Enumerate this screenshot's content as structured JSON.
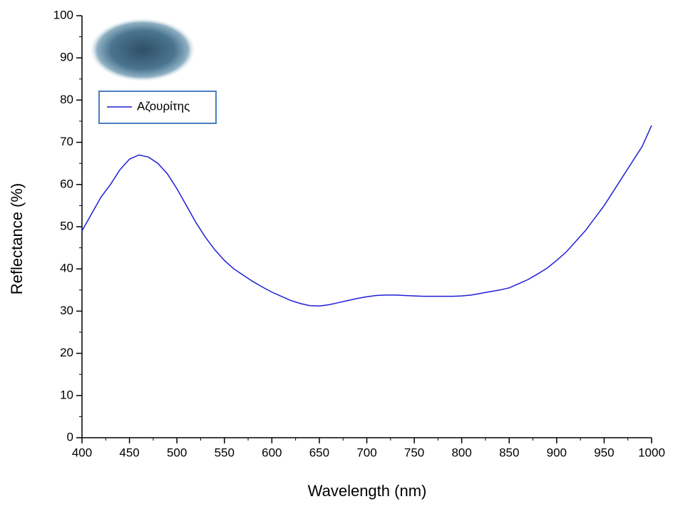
{
  "chart_data": {
    "type": "line",
    "x_label": "Wavelength (nm)",
    "y_label": "Reflectance (%)",
    "x": [
      400,
      410,
      420,
      430,
      440,
      450,
      460,
      470,
      480,
      490,
      500,
      510,
      520,
      530,
      540,
      550,
      560,
      570,
      580,
      590,
      600,
      610,
      620,
      630,
      640,
      650,
      660,
      670,
      680,
      690,
      700,
      710,
      720,
      730,
      740,
      750,
      760,
      770,
      780,
      790,
      800,
      810,
      820,
      830,
      840,
      850,
      860,
      870,
      880,
      890,
      900,
      910,
      920,
      930,
      940,
      950,
      960,
      970,
      980,
      990,
      1000
    ],
    "series": [
      {
        "name": "Αζουρίτης",
        "color": "#1f1fd6",
        "values": [
          49,
          53,
          57,
          60,
          63.5,
          66,
          67,
          66.5,
          65,
          62.5,
          59,
          55,
          51,
          47.5,
          44.5,
          42,
          40,
          38.5,
          37,
          35.7,
          34.5,
          33.5,
          32.5,
          31.8,
          31.3,
          31.2,
          31.5,
          32,
          32.5,
          33,
          33.4,
          33.7,
          33.8,
          33.8,
          33.7,
          33.6,
          33.5,
          33.5,
          33.5,
          33.5,
          33.6,
          33.8,
          34.2,
          34.6,
          35,
          35.5,
          36.5,
          37.5,
          38.8,
          40.2,
          42,
          44,
          46.5,
          49,
          52,
          55,
          58.5,
          62,
          65.5,
          69,
          74
        ]
      }
    ],
    "xlim": [
      400,
      1000
    ],
    "xticks": [
      400,
      450,
      500,
      550,
      600,
      650,
      700,
      750,
      800,
      850,
      900,
      950,
      1000
    ],
    "ylim": [
      0,
      100
    ],
    "yticks": [
      0,
      10,
      20,
      30,
      40,
      50,
      60,
      70,
      80,
      90,
      100
    ],
    "legend": "upper left",
    "grid": false
  }
}
